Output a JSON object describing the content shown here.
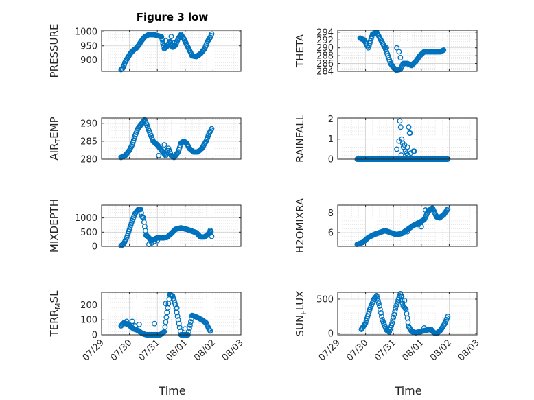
{
  "figure": {
    "title": "Figure 3 low",
    "xlabel": "Time"
  },
  "colors": {
    "marker": "#0072BD",
    "grid": "#dcdcdc",
    "axis": "#262626"
  },
  "chart_data": [
    {
      "type": "scatter",
      "id": "pressure",
      "ylabel": "PRESSURE",
      "xlim": [
        0,
        5
      ],
      "ylim": [
        860,
        1005
      ],
      "yticks": [
        900,
        950,
        1000
      ],
      "xticks": [
        "07/29",
        "07/30",
        "07/31",
        "08/01",
        "08/02",
        "08/03"
      ],
      "grid": true,
      "show_xticklabels": false,
      "knots": [
        [
          0.7,
          866
        ],
        [
          0.75,
          870
        ],
        [
          0.8,
          880
        ],
        [
          0.85,
          893
        ],
        [
          0.95,
          910
        ],
        [
          1.05,
          925
        ],
        [
          1.15,
          935
        ],
        [
          1.25,
          942
        ],
        [
          1.35,
          955
        ],
        [
          1.45,
          970
        ],
        [
          1.55,
          982
        ],
        [
          1.7,
          990
        ],
        [
          1.9,
          989
        ],
        [
          2.05,
          985
        ],
        [
          2.15,
          982
        ],
        [
          2.25,
          940
        ],
        [
          2.35,
          948
        ],
        [
          2.45,
          965
        ],
        [
          2.55,
          945
        ],
        [
          2.65,
          952
        ],
        [
          2.75,
          975
        ],
        [
          2.85,
          990
        ],
        [
          2.95,
          975
        ],
        [
          3.05,
          955
        ],
        [
          3.15,
          935
        ],
        [
          3.25,
          915
        ],
        [
          3.4,
          912
        ],
        [
          3.55,
          922
        ],
        [
          3.7,
          940
        ],
        [
          3.8,
          965
        ],
        [
          3.9,
          980
        ],
        [
          3.95,
          992
        ]
      ],
      "extra": [
        [
          2.2,
          958
        ],
        [
          2.5,
          983
        ],
        [
          2.6,
          960
        ],
        [
          2.3,
          968
        ]
      ],
      "step": 0.025
    },
    {
      "type": "scatter",
      "id": "theta",
      "ylabel": "THETA",
      "xlim": [
        0,
        5
      ],
      "ylim": [
        284,
        294.5
      ],
      "yticks": [
        284,
        286,
        288,
        290,
        292,
        294
      ],
      "xticks": [
        "07/29",
        "07/30",
        "07/31",
        "08/01",
        "08/02",
        "08/03"
      ],
      "grid": true,
      "show_xticklabels": false,
      "knots": [
        [
          0.8,
          292.5
        ],
        [
          0.95,
          292
        ],
        [
          1.1,
          290
        ],
        [
          1.25,
          293.5
        ],
        [
          1.4,
          294
        ],
        [
          1.55,
          292
        ],
        [
          1.7,
          290
        ],
        [
          1.8,
          288
        ],
        [
          1.9,
          286
        ],
        [
          2.0,
          285
        ],
        [
          2.1,
          284.3
        ],
        [
          2.25,
          284.5
        ],
        [
          2.35,
          286
        ],
        [
          2.5,
          286
        ],
        [
          2.65,
          285.5
        ],
        [
          2.8,
          286.5
        ],
        [
          2.95,
          288
        ],
        [
          3.1,
          289
        ],
        [
          3.3,
          289
        ],
        [
          3.5,
          289
        ],
        [
          3.7,
          289
        ],
        [
          3.82,
          289.5
        ]
      ],
      "extra": [
        [
          2.12,
          290
        ],
        [
          2.2,
          289
        ],
        [
          2.25,
          287.5
        ],
        [
          1.75,
          290
        ]
      ],
      "step": 0.025
    },
    {
      "type": "scatter",
      "id": "air_temp",
      "ylabel": "AIR_TEMP",
      "ylabel_main": "AIR",
      "ylabel_sub": "T",
      "ylabel_rest": "EMP",
      "xlim": [
        0,
        5
      ],
      "ylim": [
        280,
        291.5
      ],
      "yticks": [
        280,
        285,
        290
      ],
      "xticks": [
        "07/29",
        "07/30",
        "07/31",
        "08/01",
        "08/02",
        "08/03"
      ],
      "grid": true,
      "show_xticklabels": false,
      "knots": [
        [
          0.7,
          280.5
        ],
        [
          0.85,
          281
        ],
        [
          1.0,
          282.5
        ],
        [
          1.1,
          284
        ],
        [
          1.2,
          286.5
        ],
        [
          1.3,
          288.5
        ],
        [
          1.45,
          290
        ],
        [
          1.55,
          291
        ],
        [
          1.65,
          289
        ],
        [
          1.75,
          287
        ],
        [
          1.85,
          285
        ],
        [
          2.0,
          284
        ],
        [
          2.1,
          283
        ],
        [
          2.2,
          282
        ],
        [
          2.3,
          281
        ],
        [
          2.4,
          283
        ],
        [
          2.5,
          281
        ],
        [
          2.6,
          280.5
        ],
        [
          2.75,
          282
        ],
        [
          2.85,
          284.5
        ],
        [
          2.95,
          285
        ],
        [
          3.05,
          284.5
        ],
        [
          3.15,
          283
        ],
        [
          3.3,
          282
        ],
        [
          3.45,
          282
        ],
        [
          3.6,
          283
        ],
        [
          3.75,
          285
        ],
        [
          3.85,
          287
        ],
        [
          3.95,
          288.5
        ]
      ],
      "extra": [
        [
          2.05,
          281
        ],
        [
          2.25,
          284
        ],
        [
          2.35,
          282.5
        ]
      ],
      "step": 0.025
    },
    {
      "type": "scatter",
      "id": "rainfall",
      "ylabel": "RAINFALL",
      "xlim": [
        0,
        5
      ],
      "ylim": [
        0,
        2.05
      ],
      "yticks": [
        0,
        1,
        2
      ],
      "xticks": [
        "07/29",
        "07/30",
        "07/31",
        "08/01",
        "08/02",
        "08/03"
      ],
      "grid": true,
      "show_xticklabels": false,
      "knots": [
        [
          0.7,
          0
        ],
        [
          2.0,
          0
        ],
        [
          2.1,
          0
        ],
        [
          2.2,
          0
        ],
        [
          2.45,
          0
        ],
        [
          2.55,
          0
        ],
        [
          2.75,
          0
        ],
        [
          3.95,
          0
        ]
      ],
      "extra": [
        [
          2.12,
          0.5
        ],
        [
          2.2,
          0.9
        ],
        [
          2.23,
          1.9
        ],
        [
          2.26,
          1.6
        ],
        [
          2.3,
          1.0
        ],
        [
          2.33,
          0.8
        ],
        [
          2.36,
          0.6
        ],
        [
          2.4,
          0.7
        ],
        [
          2.43,
          0.4
        ],
        [
          2.47,
          0.3
        ],
        [
          2.5,
          0.6
        ],
        [
          2.55,
          1.6
        ],
        [
          2.58,
          1.3
        ],
        [
          2.6,
          1.3
        ],
        [
          2.62,
          0.3
        ],
        [
          2.72,
          0.4
        ],
        [
          2.75,
          0.4
        ],
        [
          2.52,
          0.2
        ],
        [
          2.28,
          0.2
        ]
      ],
      "step": 0.025
    },
    {
      "type": "scatter",
      "id": "mixdepth",
      "ylabel": "MIXDEPTH",
      "xlim": [
        0,
        5
      ],
      "ylim": [
        0,
        1450
      ],
      "yticks": [
        0,
        500,
        1000
      ],
      "xticks": [
        "07/29",
        "07/30",
        "07/31",
        "08/01",
        "08/02",
        "08/03"
      ],
      "grid": true,
      "show_xticklabels": false,
      "knots": [
        [
          0.7,
          20
        ],
        [
          0.8,
          100
        ],
        [
          0.9,
          300
        ],
        [
          1.0,
          600
        ],
        [
          1.1,
          900
        ],
        [
          1.2,
          1150
        ],
        [
          1.3,
          1280
        ],
        [
          1.4,
          1300
        ],
        [
          1.45,
          1050
        ],
        [
          1.5,
          1000
        ],
        [
          1.6,
          400
        ],
        [
          1.7,
          300
        ],
        [
          1.8,
          200
        ],
        [
          1.9,
          250
        ],
        [
          2.0,
          300
        ],
        [
          2.2,
          300
        ],
        [
          2.35,
          320
        ],
        [
          2.5,
          450
        ],
        [
          2.65,
          600
        ],
        [
          2.85,
          650
        ],
        [
          3.05,
          600
        ],
        [
          3.2,
          550
        ],
        [
          3.4,
          480
        ],
        [
          3.55,
          330
        ],
        [
          3.7,
          330
        ],
        [
          3.85,
          450
        ],
        [
          3.92,
          550
        ],
        [
          3.95,
          350
        ]
      ],
      "extra": [
        [
          1.7,
          70
        ],
        [
          1.8,
          120
        ],
        [
          1.9,
          180
        ],
        [
          2.0,
          200
        ],
        [
          1.6,
          380
        ],
        [
          3.9,
          560
        ]
      ],
      "step": 0.025
    },
    {
      "type": "scatter",
      "id": "h2omixra",
      "ylabel": "H2OMIXRA",
      "xlim": [
        0,
        5
      ],
      "ylim": [
        4.6,
        8.8
      ],
      "yticks": [
        6,
        8
      ],
      "xticks": [
        "07/29",
        "07/30",
        "07/31",
        "08/01",
        "08/02",
        "08/03"
      ],
      "grid": true,
      "show_xticklabels": false,
      "knots": [
        [
          0.7,
          4.8
        ],
        [
          0.9,
          5.0
        ],
        [
          1.1,
          5.5
        ],
        [
          1.3,
          5.8
        ],
        [
          1.5,
          6.0
        ],
        [
          1.7,
          6.2
        ],
        [
          1.9,
          6.0
        ],
        [
          2.1,
          5.8
        ],
        [
          2.3,
          5.9
        ],
        [
          2.5,
          6.3
        ],
        [
          2.7,
          6.7
        ],
        [
          2.9,
          7.0
        ],
        [
          3.1,
          7.3
        ],
        [
          3.25,
          8.2
        ],
        [
          3.4,
          8.5
        ],
        [
          3.55,
          7.6
        ],
        [
          3.65,
          7.5
        ],
        [
          3.8,
          7.8
        ],
        [
          3.95,
          8.4
        ]
      ],
      "extra": [
        [
          2.9,
          6.8
        ],
        [
          3.0,
          6.6
        ],
        [
          2.5,
          6.1
        ],
        [
          3.15,
          8.3
        ]
      ],
      "step": 0.025
    },
    {
      "type": "scatter",
      "id": "terr_msl",
      "ylabel": "TERR_MSL",
      "ylabel_main": "TERR",
      "ylabel_sub": "M",
      "ylabel_rest": "SL",
      "xlim": [
        0,
        5
      ],
      "ylim": [
        0,
        285
      ],
      "yticks": [
        0,
        100,
        200
      ],
      "xticks": [
        "07/29",
        "07/30",
        "07/31",
        "08/01",
        "08/02",
        "08/03"
      ],
      "grid": true,
      "show_xticklabels": true,
      "knots": [
        [
          0.7,
          60
        ],
        [
          0.8,
          80
        ],
        [
          0.95,
          70
        ],
        [
          1.05,
          55
        ],
        [
          1.15,
          40
        ],
        [
          1.3,
          30
        ],
        [
          1.45,
          10
        ],
        [
          1.6,
          0
        ],
        [
          2.1,
          0
        ],
        [
          2.25,
          20
        ],
        [
          2.35,
          150
        ],
        [
          2.45,
          270
        ],
        [
          2.55,
          260
        ],
        [
          2.65,
          200
        ],
        [
          2.75,
          100
        ],
        [
          2.85,
          0
        ],
        [
          3.1,
          0
        ],
        [
          3.25,
          130
        ],
        [
          3.4,
          120
        ],
        [
          3.6,
          100
        ],
        [
          3.75,
          80
        ],
        [
          3.85,
          40
        ],
        [
          3.92,
          20
        ]
      ],
      "extra": [
        [
          0.9,
          90
        ],
        [
          1.1,
          90
        ],
        [
          1.2,
          60
        ],
        [
          1.35,
          70
        ],
        [
          1.9,
          75
        ],
        [
          2.6,
          230
        ],
        [
          2.7,
          180
        ],
        [
          3.0,
          40
        ],
        [
          2.3,
          210
        ]
      ],
      "step": 0.025
    },
    {
      "type": "scatter",
      "id": "sun_flux",
      "ylabel": "SUN_FLUX",
      "ylabel_main": "SUN",
      "ylabel_sub": "F",
      "ylabel_rest": "LUX",
      "xlim": [
        0,
        5
      ],
      "ylim": [
        -20,
        600
      ],
      "yticks": [
        0,
        500
      ],
      "xticks": [
        "07/29",
        "07/30",
        "07/31",
        "08/01",
        "08/02",
        "08/03"
      ],
      "grid": true,
      "show_xticklabels": true,
      "knots": [
        [
          0.85,
          60
        ],
        [
          1.0,
          150
        ],
        [
          1.15,
          350
        ],
        [
          1.3,
          500
        ],
        [
          1.4,
          550
        ],
        [
          1.5,
          400
        ],
        [
          1.6,
          200
        ],
        [
          1.75,
          50
        ],
        [
          1.85,
          20
        ],
        [
          1.95,
          150
        ],
        [
          2.1,
          400
        ],
        [
          2.25,
          580
        ],
        [
          2.35,
          400
        ],
        [
          2.45,
          350
        ],
        [
          2.55,
          100
        ],
        [
          2.65,
          30
        ],
        [
          2.8,
          10
        ],
        [
          3.0,
          30
        ],
        [
          3.2,
          50
        ],
        [
          3.35,
          60
        ],
        [
          3.45,
          10
        ],
        [
          3.55,
          0
        ],
        [
          3.7,
          50
        ],
        [
          3.85,
          150
        ],
        [
          3.95,
          250
        ]
      ],
      "extra": [
        [
          2.3,
          540
        ],
        [
          2.4,
          480
        ],
        [
          3.1,
          80
        ]
      ],
      "step": 0.025
    }
  ]
}
